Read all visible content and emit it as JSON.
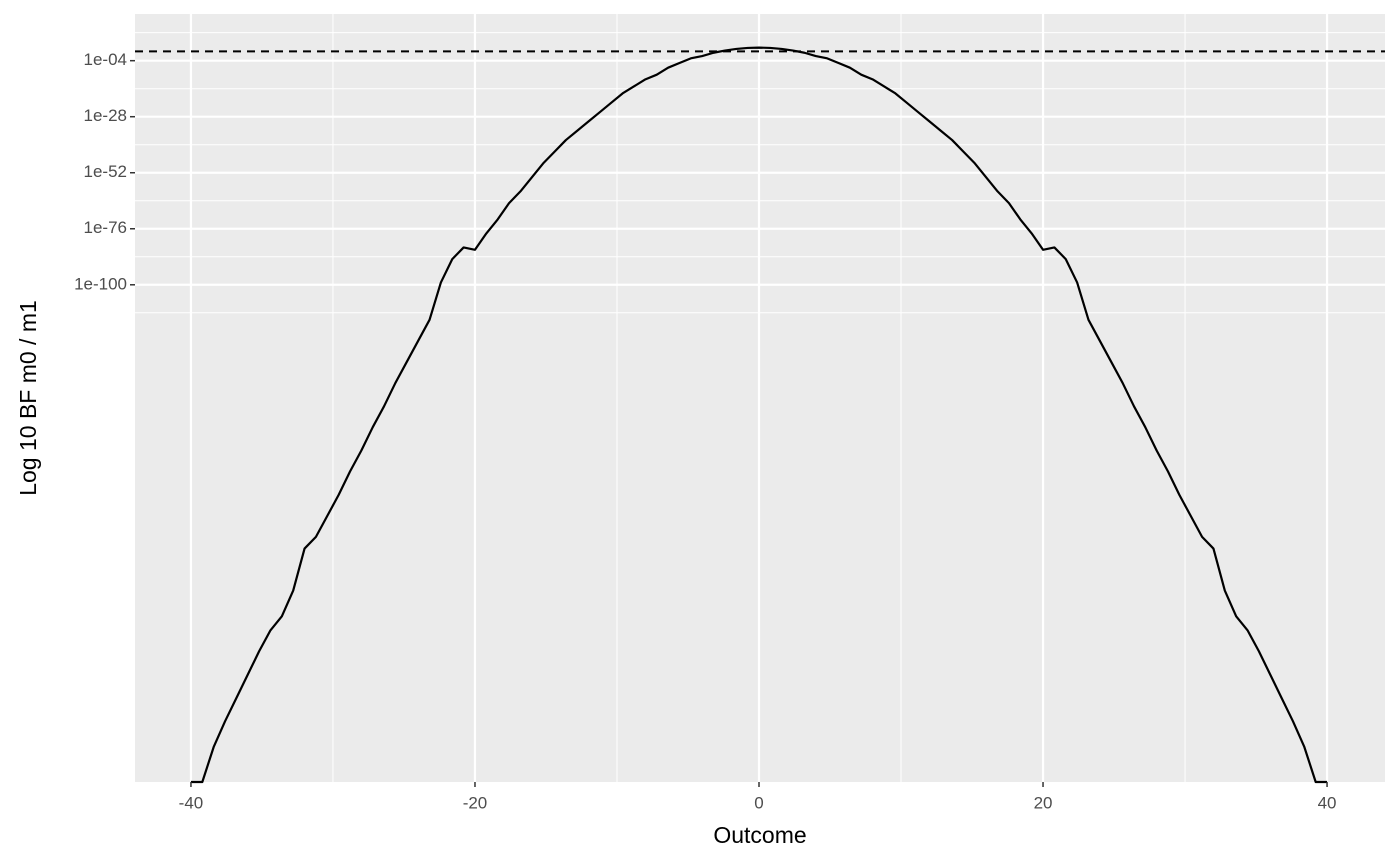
{
  "chart_data": {
    "type": "line",
    "x_label": "Outcome",
    "y_label": "Log 10 BF m0 / m1",
    "y_scale": "log",
    "grid": true,
    "color": "#000000",
    "hline": 1,
    "xlim": [
      -43.94,
      44.08
    ],
    "ylim": [
      1e-313,
      1e+16
    ],
    "xticks": [
      -40,
      -20,
      0,
      20,
      40
    ],
    "x_minor_ticks": [
      -30,
      -10,
      10,
      30
    ],
    "yticks": [
      {
        "value": 0.0001,
        "label": "1e-04"
      },
      {
        "value": 1e-28,
        "label": "1e-28"
      },
      {
        "value": 1e-52,
        "label": "1e-52"
      },
      {
        "value": 1e-76,
        "label": "1e-76"
      },
      {
        "value": 1e-100,
        "label": "1e-100"
      }
    ],
    "y_minor_ticks": [
      100000000.0,
      1e-16,
      1e-40,
      1e-64,
      1e-88,
      1e-112
    ],
    "x": [
      -40,
      -39.2,
      -38.4,
      -37.6,
      -36.8,
      -36,
      -35.2,
      -34.4,
      -33.6,
      -32.8,
      -32,
      -31.2,
      -30.4,
      -29.6,
      -28.8,
      -28,
      -27.2,
      -26.4,
      -25.6,
      -24.8,
      -24,
      -23.2,
      -22.4,
      -21.6,
      -20.8,
      -20,
      -19.2,
      -18.4,
      -17.6,
      -16.8,
      -16,
      -15.2,
      -14.4,
      -13.6,
      -12.8,
      -12,
      -11.2,
      -10.4,
      -9.6,
      -8.8,
      -8,
      -7.2,
      -6.4,
      -5.6,
      -4.8,
      -4,
      -3.2,
      -2.4,
      -1.6,
      -0.8,
      0,
      0.8,
      1.6,
      2.4,
      3.2,
      4,
      4.8,
      5.6,
      6.4,
      7.2,
      8,
      8.8,
      9.6,
      10.4,
      11.2,
      12,
      12.8,
      13.6,
      14.4,
      15.2,
      16,
      16.8,
      17.6,
      18.4,
      19.2,
      20,
      20.8,
      21.6,
      22.4,
      23.2,
      24,
      24.8,
      25.6,
      26.4,
      27.2,
      28,
      28.8,
      29.6,
      30.4,
      31.2,
      32,
      32.8,
      33.6,
      34.4,
      35.2,
      36,
      36.8,
      37.6,
      38.4,
      39.2,
      40
    ],
    "values": [
      1e-313,
      1e-313,
      1e-298,
      1e-287,
      1e-277,
      1e-267,
      1e-257,
      1e-248,
      1e-242,
      1e-231,
      1e-213,
      1e-208,
      1e-199,
      1e-190,
      1e-180,
      1e-171,
      1e-161,
      1e-152,
      1e-142,
      1e-133,
      1e-124,
      1e-115,
      1e-99,
      1e-89,
      1e-84,
      1e-85,
      1e-78,
      1e-72,
      1e-65,
      1e-60,
      1e-54,
      1e-48,
      1e-43,
      1e-38,
      1e-34,
      1e-30,
      1e-26,
      1e-22,
      1e-18,
      1e-15,
      1e-12,
      1e-10,
      1e-07,
      1e-05,
      0.001,
      0.01,
      0.25,
      2.2,
      11,
      29,
      40,
      29,
      11,
      2.2,
      0.25,
      0.01,
      0.001,
      1e-05,
      1e-07,
      1e-10,
      1e-12,
      1e-15,
      1e-18,
      1e-22,
      1e-26,
      1e-30,
      1e-34,
      1e-38,
      1e-43,
      1e-48,
      1e-54,
      1e-60,
      1e-65,
      1e-72,
      1e-78,
      1e-85,
      1e-84,
      1e-89,
      1e-99,
      1e-115,
      1e-124,
      1e-133,
      1e-142,
      1e-152,
      1e-161,
      1e-171,
      1e-180,
      1e-190,
      1e-199,
      1e-208,
      1e-213,
      1e-231,
      1e-242,
      1e-248,
      1e-257,
      1e-267,
      1e-277,
      1e-287,
      1e-298,
      1e-313,
      1e-313
    ]
  }
}
